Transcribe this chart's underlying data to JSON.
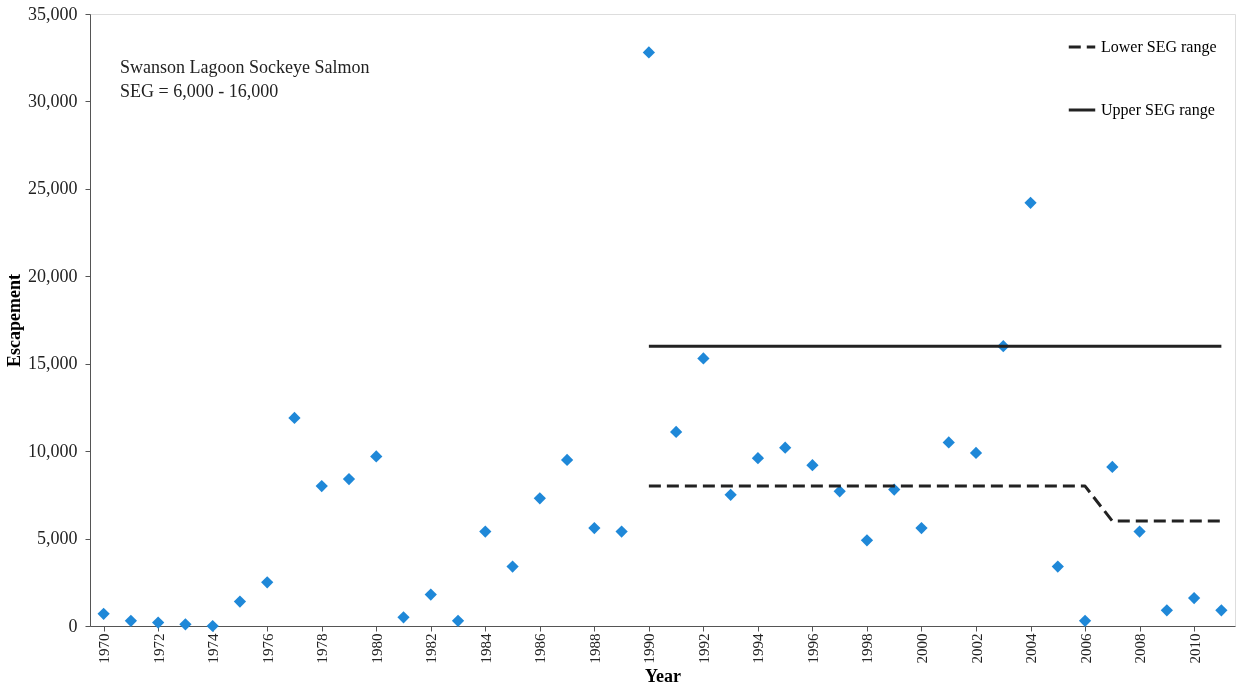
{
  "chart_data": {
    "type": "scatter",
    "xlabel": "Year",
    "ylabel": "Escapement",
    "annotations": [
      "Swanson Lagoon Sockeye Salmon",
      "SEG = 6,000 - 16,000"
    ],
    "xlim": [
      1969.5,
      2011.5
    ],
    "xticks": [
      1970,
      1972,
      1974,
      1976,
      1978,
      1980,
      1982,
      1984,
      1986,
      1988,
      1990,
      1992,
      1994,
      1996,
      1998,
      2000,
      2002,
      2004,
      2006,
      2008,
      2010
    ],
    "ylim": [
      0,
      35000
    ],
    "yticks": [
      {
        "value": 0,
        "label": "0"
      },
      {
        "value": 5000,
        "label": "5,000"
      },
      {
        "value": 10000,
        "label": "10,000"
      },
      {
        "value": 15000,
        "label": "15,000"
      },
      {
        "value": 20000,
        "label": "20,000"
      },
      {
        "value": 25000,
        "label": "25,000"
      },
      {
        "value": 30000,
        "label": "30,000"
      },
      {
        "value": 35000,
        "label": "35,000"
      }
    ],
    "grid": false,
    "legend": "top right",
    "series": [
      {
        "marker": "diamond",
        "color": "#1f88d8",
        "x": [
          1970,
          1971,
          1972,
          1973,
          1974,
          1975,
          1976,
          1977,
          1978,
          1979,
          1980,
          1981,
          1982,
          1983,
          1984,
          1985,
          1986,
          1987,
          1988,
          1989,
          1990,
          1991,
          1992,
          1993,
          1994,
          1995,
          1996,
          1997,
          1998,
          1999,
          2000,
          2001,
          2002,
          2003,
          2004,
          2005,
          2006,
          2007,
          2008,
          2009,
          2010,
          2011
        ],
        "values": [
          700,
          300,
          200,
          100,
          0,
          1400,
          2500,
          11900,
          8000,
          8400,
          9700,
          500,
          1800,
          300,
          5400,
          3400,
          7300,
          9500,
          5600,
          5400,
          32800,
          11100,
          15300,
          7500,
          9600,
          10200,
          9200,
          7700,
          4900,
          7800,
          5600,
          10500,
          9900,
          16000,
          24200,
          3400,
          300,
          9100,
          5400,
          900,
          1600,
          900
        ]
      },
      {
        "type": "line",
        "name": "Lower SEG range",
        "color": "#222222",
        "line_style": "dashed",
        "x": [
          1990,
          2006,
          2007,
          2011
        ],
        "values": [
          8000,
          8000,
          6000,
          6000
        ]
      },
      {
        "type": "line",
        "name": "Upper SEG range",
        "color": "#222222",
        "line_style": "solid",
        "x": [
          1990,
          2011
        ],
        "values": [
          16000,
          16000
        ]
      }
    ]
  }
}
